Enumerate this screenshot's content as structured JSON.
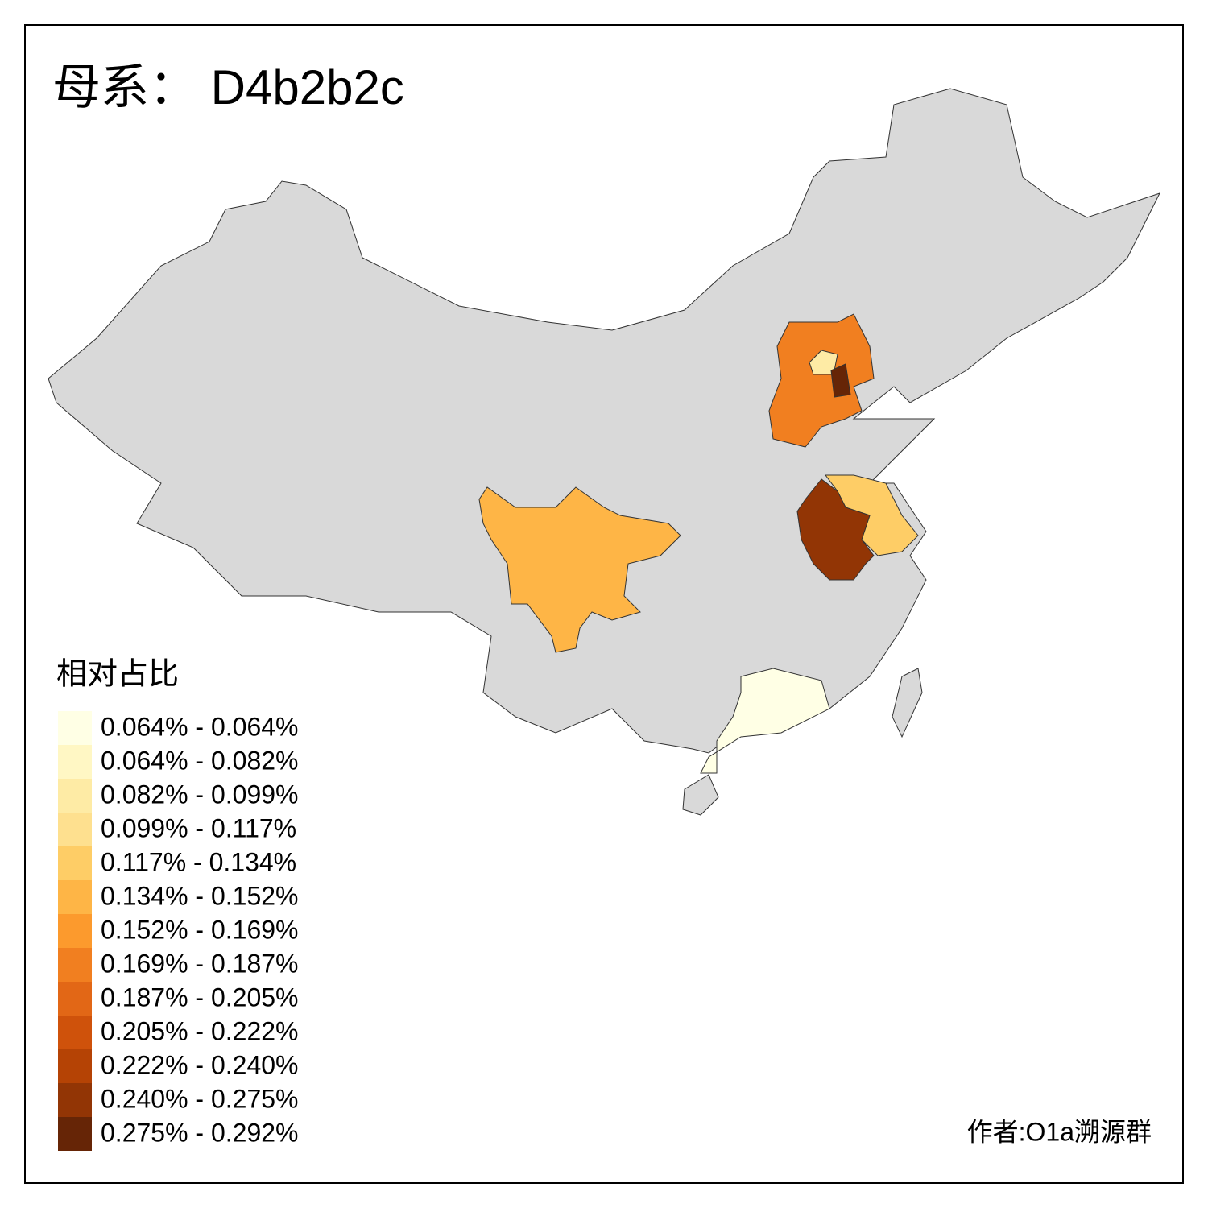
{
  "title": "母系： D4b2b2c",
  "legend": {
    "title": "相对占比",
    "items": [
      {
        "label": "0.064% - 0.064%",
        "color": "#ffffe5"
      },
      {
        "label": "0.064% - 0.082%",
        "color": "#fff7c4"
      },
      {
        "label": "0.082% - 0.099%",
        "color": "#feeba5"
      },
      {
        "label": "0.099% - 0.117%",
        "color": "#fee08f"
      },
      {
        "label": "0.117% - 0.134%",
        "color": "#fecd66"
      },
      {
        "label": "0.134% - 0.152%",
        "color": "#feb546"
      },
      {
        "label": "0.152% - 0.169%",
        "color": "#fc9a2d"
      },
      {
        "label": "0.169% - 0.187%",
        "color": "#f17f20"
      },
      {
        "label": "0.187% - 0.205%",
        "color": "#e26716"
      },
      {
        "label": "0.205% - 0.222%",
        "color": "#cf520b"
      },
      {
        "label": "0.222% - 0.240%",
        "color": "#b54305"
      },
      {
        "label": "0.240% - 0.275%",
        "color": "#923505"
      },
      {
        "label": "0.275% - 0.292%",
        "color": "#662506"
      }
    ]
  },
  "credit": "作者:O1a溯源群"
}
